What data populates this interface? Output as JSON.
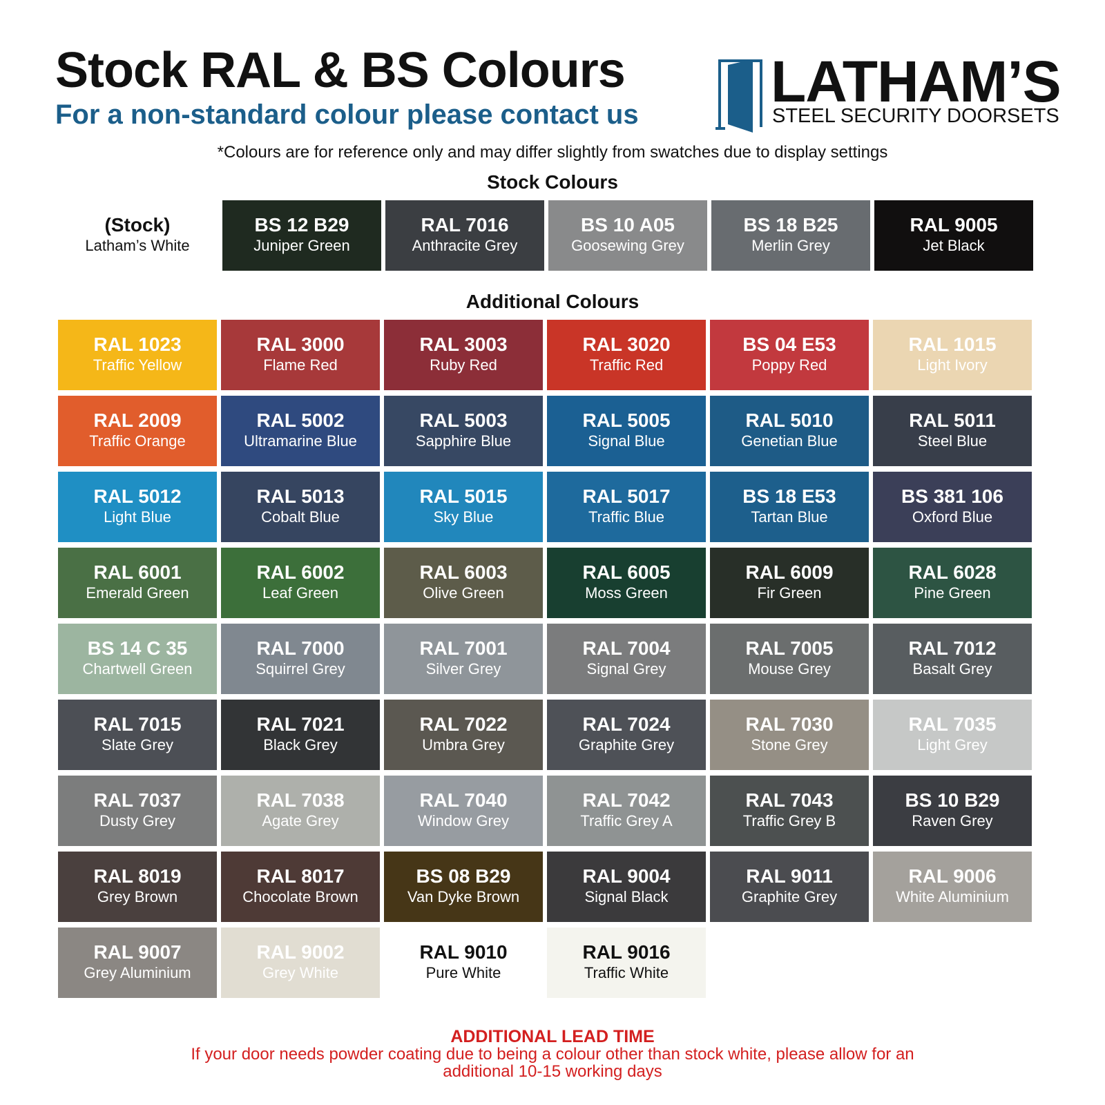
{
  "header": {
    "title": "Stock RAL & BS Colours",
    "subtitle": "For a non-standard colour please contact us"
  },
  "logo": {
    "name": "LATHAM’S",
    "tagline": "STEEL SECURITY DOORSETS",
    "icon": "door-icon",
    "color": "#1b5e8a"
  },
  "disclaimer": "*Colours are for reference only and may differ slightly from swatches due to display settings",
  "stock_section": {
    "heading": "Stock Colours",
    "swatches": [
      {
        "code": "(Stock)",
        "name": "Latham’s White",
        "color": "#ffffff",
        "text": "#111111"
      },
      {
        "code": "BS 12 B29",
        "name": "Juniper Green",
        "color": "#1f2a20",
        "text": "#ffffff"
      },
      {
        "code": "RAL 7016",
        "name": "Anthracite Grey",
        "color": "#3b3e42",
        "text": "#ffffff"
      },
      {
        "code": "BS 10 A05",
        "name": "Goosewing Grey",
        "color": "#898a8b",
        "text": "#ffffff"
      },
      {
        "code": "BS 18 B25",
        "name": "Merlin Grey",
        "color": "#686c70",
        "text": "#ffffff"
      },
      {
        "code": "RAL 9005",
        "name": "Jet Black",
        "color": "#110f0f",
        "text": "#ffffff"
      }
    ]
  },
  "additional_section": {
    "heading": "Additional Colours",
    "swatches": [
      {
        "code": "RAL 1023",
        "name": "Traffic Yellow",
        "color": "#f5b718",
        "text": "#ffffff"
      },
      {
        "code": "RAL 3000",
        "name": "Flame Red",
        "color": "#a7393a",
        "text": "#ffffff"
      },
      {
        "code": "RAL 3003",
        "name": "Ruby Red",
        "color": "#8c2e38",
        "text": "#ffffff"
      },
      {
        "code": "RAL 3020",
        "name": "Traffic Red",
        "color": "#c93527",
        "text": "#ffffff"
      },
      {
        "code": "BS 04 E53",
        "name": "Poppy Red",
        "color": "#c2393e",
        "text": "#ffffff"
      },
      {
        "code": "RAL 1015",
        "name": "Light Ivory",
        "color": "#ebd6b2",
        "text": "#ffffff"
      },
      {
        "code": "RAL 2009",
        "name": "Traffic Orange",
        "color": "#e15d2c",
        "text": "#ffffff"
      },
      {
        "code": "RAL 5002",
        "name": "Ultramarine Blue",
        "color": "#2f4a7f",
        "text": "#ffffff"
      },
      {
        "code": "RAL 5003",
        "name": "Sapphire Blue",
        "color": "#374863",
        "text": "#ffffff"
      },
      {
        "code": "RAL 5005",
        "name": "Signal Blue",
        "color": "#1b6093",
        "text": "#ffffff"
      },
      {
        "code": "RAL 5010",
        "name": "Genetian Blue",
        "color": "#1e5b86",
        "text": "#ffffff"
      },
      {
        "code": "RAL 5011",
        "name": "Steel Blue",
        "color": "#383e4a",
        "text": "#ffffff"
      },
      {
        "code": "RAL 5012",
        "name": "Light Blue",
        "color": "#1f8fc4",
        "text": "#ffffff"
      },
      {
        "code": "RAL 5013",
        "name": "Cobalt Blue",
        "color": "#364560",
        "text": "#ffffff"
      },
      {
        "code": "RAL 5015",
        "name": "Sky Blue",
        "color": "#2187bc",
        "text": "#ffffff"
      },
      {
        "code": "RAL 5017",
        "name": "Traffic Blue",
        "color": "#1e6a9d",
        "text": "#ffffff"
      },
      {
        "code": "BS 18 E53",
        "name": "Tartan Blue",
        "color": "#1d5f8c",
        "text": "#ffffff"
      },
      {
        "code": "BS 381 106",
        "name": "Oxford Blue",
        "color": "#3b3f58",
        "text": "#ffffff"
      },
      {
        "code": "RAL 6001",
        "name": "Emerald Green",
        "color": "#4a7045",
        "text": "#ffffff"
      },
      {
        "code": "RAL 6002",
        "name": "Leaf Green",
        "color": "#3c6f3a",
        "text": "#ffffff"
      },
      {
        "code": "RAL 6003",
        "name": "Olive Green",
        "color": "#5d5c4a",
        "text": "#ffffff"
      },
      {
        "code": "RAL 6005",
        "name": "Moss Green",
        "color": "#183f30",
        "text": "#ffffff"
      },
      {
        "code": "RAL 6009",
        "name": "Fir Green",
        "color": "#282f28",
        "text": "#ffffff"
      },
      {
        "code": "RAL 6028",
        "name": "Pine Green",
        "color": "#2d5443",
        "text": "#ffffff"
      },
      {
        "code": "BS 14 C 35",
        "name": "Chartwell Green",
        "color": "#9cb5a0",
        "text": "#ffffff"
      },
      {
        "code": "RAL 7000",
        "name": "Squirrel Grey",
        "color": "#808890",
        "text": "#ffffff"
      },
      {
        "code": "RAL 7001",
        "name": "Silver Grey",
        "color": "#8f959a",
        "text": "#ffffff"
      },
      {
        "code": "RAL 7004",
        "name": "Signal Grey",
        "color": "#7b7c7d",
        "text": "#ffffff"
      },
      {
        "code": "RAL 7005",
        "name": "Mouse Grey",
        "color": "#6b6e6e",
        "text": "#ffffff"
      },
      {
        "code": "RAL 7012",
        "name": "Basalt Grey",
        "color": "#585d60",
        "text": "#ffffff"
      },
      {
        "code": "RAL 7015",
        "name": "Slate Grey",
        "color": "#4c4f55",
        "text": "#ffffff"
      },
      {
        "code": "RAL 7021",
        "name": "Black Grey",
        "color": "#323436",
        "text": "#ffffff"
      },
      {
        "code": "RAL 7022",
        "name": "Umbra Grey",
        "color": "#5b5851",
        "text": "#ffffff"
      },
      {
        "code": "RAL 7024",
        "name": "Graphite Grey",
        "color": "#4e5157",
        "text": "#ffffff"
      },
      {
        "code": "RAL 7030",
        "name": "Stone Grey",
        "color": "#958f85",
        "text": "#ffffff"
      },
      {
        "code": "RAL 7035",
        "name": "Light Grey",
        "color": "#c6c8c7",
        "text": "#ffffff"
      },
      {
        "code": "RAL 7037",
        "name": "Dusty Grey",
        "color": "#7c7d7d",
        "text": "#ffffff"
      },
      {
        "code": "RAL 7038",
        "name": "Agate Grey",
        "color": "#aeb0ab",
        "text": "#ffffff"
      },
      {
        "code": "RAL 7040",
        "name": "Window Grey",
        "color": "#979ca1",
        "text": "#ffffff"
      },
      {
        "code": "RAL 7042",
        "name": "Traffic Grey A",
        "color": "#8f9393",
        "text": "#ffffff"
      },
      {
        "code": "RAL 7043",
        "name": "Traffic Grey B",
        "color": "#4c5050",
        "text": "#ffffff"
      },
      {
        "code": "BS 10 B29",
        "name": "Raven Grey",
        "color": "#3b3d42",
        "text": "#ffffff"
      },
      {
        "code": "RAL 8019",
        "name": "Grey Brown",
        "color": "#4a403e",
        "text": "#ffffff"
      },
      {
        "code": "RAL 8017",
        "name": "Chocolate Brown",
        "color": "#4e3a36",
        "text": "#ffffff"
      },
      {
        "code": "BS 08 B29",
        "name": "Van Dyke Brown",
        "color": "#463617",
        "text": "#ffffff"
      },
      {
        "code": "RAL 9004",
        "name": "Signal Black",
        "color": "#3b3a3c",
        "text": "#ffffff"
      },
      {
        "code": "RAL 9011",
        "name": "Graphite Grey",
        "color": "#4b4c50",
        "text": "#ffffff"
      },
      {
        "code": "RAL 9006",
        "name": "White Aluminium",
        "color": "#a4a19c",
        "text": "#ffffff"
      },
      {
        "code": "RAL 9007",
        "name": "Grey Aluminium",
        "color": "#8b8783",
        "text": "#ffffff"
      },
      {
        "code": "RAL 9002",
        "name": "Grey White",
        "color": "#e1ddd2",
        "text": "#ffffff"
      },
      {
        "code": "RAL 9010",
        "name": "Pure White",
        "color": "#ffffff",
        "text": "#111111"
      },
      {
        "code": "RAL 9016",
        "name": "Traffic White",
        "color": "#f4f4ee",
        "text": "#111111"
      }
    ]
  },
  "notice": {
    "title": "ADDITIONAL LEAD TIME",
    "body": "If your door needs powder coating due to being a colour other than stock white, please allow for an additional 10-15 working days",
    "color": "#d31f1f"
  }
}
